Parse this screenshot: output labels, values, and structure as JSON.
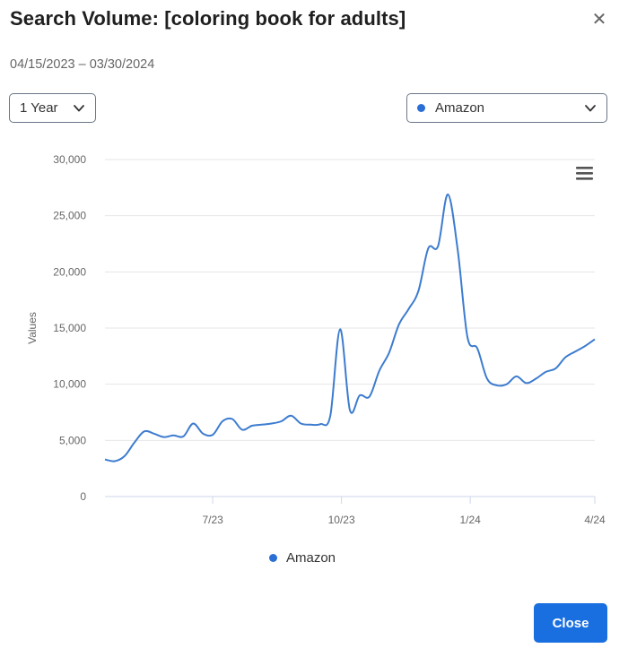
{
  "dialog": {
    "title": "Search Volume: [coloring book for adults]",
    "date_range": "04/15/2023 – 03/30/2024",
    "close_icon": "close-icon",
    "close_button_label": "Close",
    "accent_color": "#1a6fe0"
  },
  "controls": {
    "period_selected": "1 Year",
    "source_selected": "Amazon",
    "chevron_icon": "chevron-down-icon",
    "menu_icon": "hamburger-menu-icon"
  },
  "chart_data": {
    "type": "line",
    "title": "",
    "xlabel": "",
    "ylabel": "Values",
    "ylim": [
      0,
      30000
    ],
    "yticks": [
      0,
      5000,
      10000,
      15000,
      20000,
      25000,
      30000
    ],
    "ytick_labels": [
      "0",
      "5,000",
      "10,000",
      "15,000",
      "20,000",
      "25,000",
      "30,000"
    ],
    "xlim": [
      "2023-04-15",
      "2024-03-30"
    ],
    "xticks": [
      {
        "date": "2023-07-01",
        "label": "7/23"
      },
      {
        "date": "2023-10-01",
        "label": "10/23"
      },
      {
        "date": "2024-01-01",
        "label": "1/24"
      },
      {
        "date": "2024-03-30",
        "label": "4/24"
      }
    ],
    "grid": true,
    "legend_position": "bottom-center",
    "series": [
      {
        "name": "Amazon",
        "color": "#3d7ccf",
        "points": [
          [
            "2023-04-15",
            3300
          ],
          [
            "2023-04-22",
            3150
          ],
          [
            "2023-04-29",
            3600
          ],
          [
            "2023-05-06",
            4800
          ],
          [
            "2023-05-13",
            5800
          ],
          [
            "2023-05-20",
            5600
          ],
          [
            "2023-05-27",
            5300
          ],
          [
            "2023-06-03",
            5450
          ],
          [
            "2023-06-10",
            5350
          ],
          [
            "2023-06-17",
            6500
          ],
          [
            "2023-06-24",
            5600
          ],
          [
            "2023-07-01",
            5500
          ],
          [
            "2023-07-08",
            6700
          ],
          [
            "2023-07-15",
            6900
          ],
          [
            "2023-07-22",
            5950
          ],
          [
            "2023-07-29",
            6300
          ],
          [
            "2023-08-05",
            6400
          ],
          [
            "2023-08-12",
            6500
          ],
          [
            "2023-08-19",
            6700
          ],
          [
            "2023-08-26",
            7200
          ],
          [
            "2023-09-02",
            6500
          ],
          [
            "2023-09-09",
            6400
          ],
          [
            "2023-09-16",
            6450
          ],
          [
            "2023-09-23",
            7200
          ],
          [
            "2023-09-30",
            14900
          ],
          [
            "2023-10-07",
            7700
          ],
          [
            "2023-10-14",
            9000
          ],
          [
            "2023-10-21",
            8900
          ],
          [
            "2023-10-28",
            11200
          ],
          [
            "2023-11-04",
            12800
          ],
          [
            "2023-11-11",
            15300
          ],
          [
            "2023-11-18",
            16700
          ],
          [
            "2023-11-25",
            18300
          ],
          [
            "2023-12-02",
            22100
          ],
          [
            "2023-12-09",
            22300
          ],
          [
            "2023-12-16",
            26900
          ],
          [
            "2023-12-23",
            22000
          ],
          [
            "2023-12-30",
            14200
          ],
          [
            "2024-01-06",
            13200
          ],
          [
            "2024-01-13",
            10500
          ],
          [
            "2024-01-20",
            9900
          ],
          [
            "2024-01-27",
            10000
          ],
          [
            "2024-02-03",
            10700
          ],
          [
            "2024-02-10",
            10100
          ],
          [
            "2024-02-17",
            10500
          ],
          [
            "2024-02-24",
            11100
          ],
          [
            "2024-03-02",
            11400
          ],
          [
            "2024-03-09",
            12400
          ],
          [
            "2024-03-16",
            12900
          ],
          [
            "2024-03-23",
            13400
          ],
          [
            "2024-03-30",
            14000
          ]
        ]
      }
    ]
  }
}
